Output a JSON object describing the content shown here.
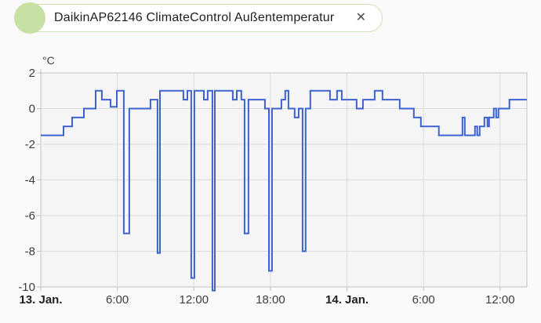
{
  "chip": {
    "label": "DaikinAP62146 ClimateControl Außentemperatur",
    "close_glyph": "✕",
    "dot_color": "#c7e0a4",
    "border_color": "#cfe1b2"
  },
  "chart_data": {
    "type": "line",
    "step": true,
    "title": "",
    "unit_label": "°C",
    "line_color": "#3e63d1",
    "plot_bg": "#f5f5f6",
    "grid_color": "#dcdcdc",
    "axis_color": "#c2c2c2",
    "tick_color": "#3d3d3d",
    "date_tick_color": "#1f1f1f",
    "x_axis": {
      "t_start": 0,
      "t_end": 38.1,
      "unit": "hours since 13 Jan 00:00",
      "ticks": [
        {
          "t": 0,
          "label": "13. Jan.",
          "bold": true
        },
        {
          "t": 6,
          "label": "6:00",
          "bold": false
        },
        {
          "t": 12,
          "label": "12:00",
          "bold": false
        },
        {
          "t": 18,
          "label": "18:00",
          "bold": false
        },
        {
          "t": 24,
          "label": "14. Jan.",
          "bold": true
        },
        {
          "t": 30,
          "label": "6:00",
          "bold": false
        },
        {
          "t": 36,
          "label": "12:00",
          "bold": false
        }
      ]
    },
    "y_axis": {
      "min": -10,
      "max": 2,
      "ticks": [
        2,
        0,
        -2,
        -4,
        -6,
        -8,
        -10
      ]
    },
    "series": [
      {
        "name": "DaikinAP62146 ClimateControl Außentemperatur",
        "points": [
          [
            0,
            -1.5
          ],
          [
            1.78,
            -1
          ],
          [
            2.46,
            -0.5
          ],
          [
            3.38,
            0
          ],
          [
            4.3,
            1
          ],
          [
            4.79,
            0.5
          ],
          [
            5.47,
            0.1
          ],
          [
            5.96,
            1
          ],
          [
            6.51,
            -7
          ],
          [
            6.94,
            0
          ],
          [
            8.6,
            0.5
          ],
          [
            9.15,
            -8.1
          ],
          [
            9.34,
            1
          ],
          [
            11.18,
            0.5
          ],
          [
            11.49,
            1
          ],
          [
            11.79,
            -9.5
          ],
          [
            12.04,
            1
          ],
          [
            12.78,
            0.5
          ],
          [
            13.08,
            1
          ],
          [
            13.45,
            -10.2
          ],
          [
            13.64,
            1
          ],
          [
            15.05,
            0.5
          ],
          [
            15.36,
            1
          ],
          [
            15.72,
            0.5
          ],
          [
            15.97,
            -7
          ],
          [
            16.28,
            0.5
          ],
          [
            17.57,
            0
          ],
          [
            17.88,
            -9.1
          ],
          [
            18.12,
            0
          ],
          [
            18.86,
            0.5
          ],
          [
            19.16,
            1
          ],
          [
            19.41,
            0
          ],
          [
            19.9,
            -0.5
          ],
          [
            20.21,
            0
          ],
          [
            20.52,
            -8
          ],
          [
            20.76,
            0
          ],
          [
            21.13,
            1
          ],
          [
            22.67,
            0.5
          ],
          [
            23.22,
            1
          ],
          [
            23.59,
            0.5
          ],
          [
            24.75,
            0
          ],
          [
            25.25,
            0.5
          ],
          [
            26.17,
            1
          ],
          [
            26.78,
            0.5
          ],
          [
            28.13,
            0
          ],
          [
            29.24,
            -0.5
          ],
          [
            29.79,
            -1
          ],
          [
            31.2,
            -1.5
          ],
          [
            33.05,
            -0.5
          ],
          [
            33.23,
            -1.5
          ],
          [
            34.03,
            -1
          ],
          [
            34.21,
            -1.5
          ],
          [
            34.4,
            -1
          ],
          [
            34.77,
            -0.5
          ],
          [
            35.01,
            -1
          ],
          [
            35.14,
            -0.5
          ],
          [
            35.5,
            0
          ],
          [
            35.69,
            -0.5
          ],
          [
            35.87,
            0
          ],
          [
            36.73,
            0.5
          ]
        ]
      }
    ]
  }
}
